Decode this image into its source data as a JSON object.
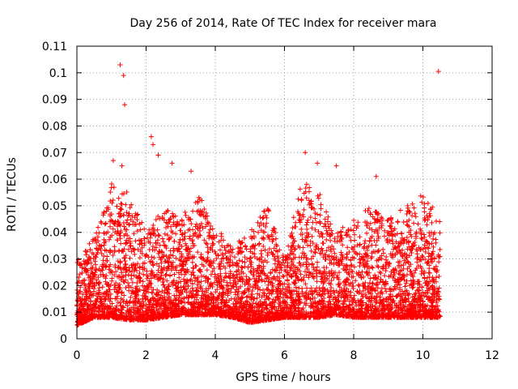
{
  "chart_data": {
    "type": "scatter",
    "title": "Day 256 of 2014, Rate Of TEC Index for receiver mara",
    "xlabel": "GPS time / hours",
    "ylabel": "ROTI / TECUs",
    "xlim": [
      0,
      12
    ],
    "ylim": [
      0,
      0.11
    ],
    "xticks": [
      0,
      2,
      4,
      6,
      8,
      10,
      12
    ],
    "xtick_labels": [
      "0",
      "2",
      "4",
      "6",
      "8",
      "10",
      "12"
    ],
    "yticks": [
      0,
      0.01,
      0.02,
      0.03,
      0.04,
      0.05,
      0.06,
      0.07,
      0.08,
      0.09,
      0.1,
      0.11
    ],
    "ytick_labels": [
      "0",
      "0.01",
      "0.02",
      "0.03",
      "0.04",
      "0.05",
      "0.06",
      "0.07",
      "0.08",
      "0.09",
      "0.1",
      "0.11"
    ],
    "grid": true,
    "marker": "+",
    "color": "#ff0000",
    "x_data_range": [
      0,
      10.5
    ],
    "outliers": [
      {
        "x": 1.25,
        "y": 0.103
      },
      {
        "x": 1.35,
        "y": 0.099
      },
      {
        "x": 1.38,
        "y": 0.088
      },
      {
        "x": 10.45,
        "y": 0.1005
      },
      {
        "x": 2.15,
        "y": 0.076
      },
      {
        "x": 2.2,
        "y": 0.073
      },
      {
        "x": 2.35,
        "y": 0.069
      },
      {
        "x": 6.6,
        "y": 0.07
      },
      {
        "x": 6.95,
        "y": 0.066
      },
      {
        "x": 7.5,
        "y": 0.065
      },
      {
        "x": 8.65,
        "y": 0.061
      },
      {
        "x": 2.75,
        "y": 0.066
      },
      {
        "x": 1.05,
        "y": 0.067
      },
      {
        "x": 1.3,
        "y": 0.065
      },
      {
        "x": 3.3,
        "y": 0.063
      }
    ],
    "envelope_hours": [
      0,
      0.5,
      1.0,
      1.5,
      2.0,
      2.5,
      3.0,
      3.5,
      4.0,
      4.5,
      5.0,
      5.5,
      6.0,
      6.5,
      7.0,
      7.5,
      8.0,
      8.5,
      9.0,
      9.5,
      10.0,
      10.5
    ],
    "envelope_upper": [
      0.03,
      0.038,
      0.06,
      0.055,
      0.04,
      0.05,
      0.045,
      0.055,
      0.042,
      0.035,
      0.04,
      0.05,
      0.03,
      0.06,
      0.055,
      0.04,
      0.045,
      0.05,
      0.045,
      0.05,
      0.055,
      0.045
    ],
    "envelope_lower": [
      0.005,
      0.008,
      0.008,
      0.007,
      0.007,
      0.008,
      0.009,
      0.009,
      0.009,
      0.008,
      0.006,
      0.007,
      0.008,
      0.008,
      0.008,
      0.009,
      0.008,
      0.008,
      0.008,
      0.008,
      0.008,
      0.008
    ]
  }
}
